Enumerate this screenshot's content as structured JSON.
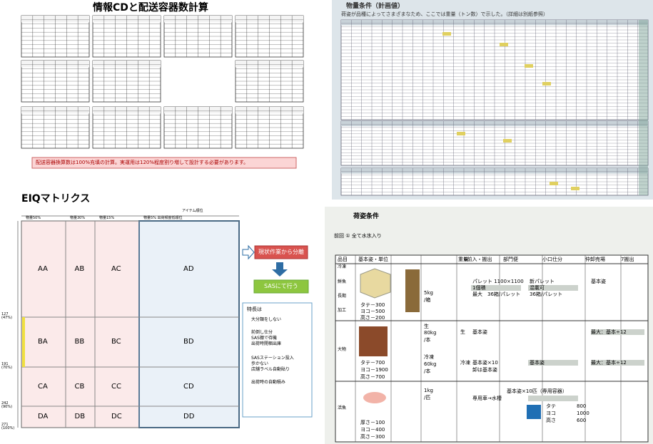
{
  "cd_panel": {
    "title": "情報CDと配送容器数計算",
    "note": "配送容器換算数は100%充填の計算。実運用は120%程度割り増して設計する必要があります。"
  },
  "eiq_panel": {
    "title": "EIQマトリクス",
    "top_labels": [
      "物量50%",
      "物量30%",
      "物量15%",
      "物量5% 出荷頻度低順位",
      "アイテム順位"
    ],
    "left_labels": [
      "127 (47%)",
      "191 (70%)",
      "242 (90%)",
      "271 (100%)"
    ],
    "cells": [
      [
        "AA",
        "AB",
        "AC",
        "AD"
      ],
      [
        "BA",
        "BB",
        "BC",
        "BD"
      ],
      [
        "CA",
        "CB",
        "CC",
        "CD"
      ],
      [
        "DA",
        "DB",
        "DC",
        "DD"
      ]
    ],
    "separate": "現状作業から分離",
    "sas": "SASにて行う",
    "features": {
      "heading": "特長は",
      "items": [
        "大分類をしない",
        "前倒し仕分",
        "SAS棚で待機",
        "出荷時開梱出庫",
        "SASステーション投入",
        "歩かない",
        "店舗ラベル自動貼り",
        "出荷時の自動積み"
      ]
    }
  },
  "volume_panel": {
    "title": "物量条件（計画値）",
    "subtitle": "荷姿が品種によってさまざまなため、ここでは重量（トン数）で示した。（詳細は別紙参照）"
  },
  "packing_panel": {
    "title": "荷姿条件",
    "premise": "前回 ① 全て水氷入り",
    "header": [
      "品目",
      "基本姿・単位",
      "重量",
      "6前入・搬出",
      "部門便",
      "小口仕分",
      "仲卸売場",
      "7搬出"
    ],
    "rows": [
      {
        "items": [
          "冷凍",
          "鮮魚",
          "長期",
          "加工"
        ],
        "size": [
          "タテ－300",
          "ヨコ－500",
          "高さ－200"
        ],
        "weight": [
          "5kg",
          "/箱"
        ],
        "cells": [
          "パレット 1100×1100",
          "1個積",
          "最大　36箱/パレット",
          "新パレット",
          "混載可",
          "36箱/パレット",
          "基本姿"
        ]
      },
      {
        "items": [
          "大物"
        ],
        "size": [
          "タテ－700",
          "ヨコ－1900",
          "高さ－700"
        ],
        "weight": [
          "生",
          "80kg",
          "/本",
          "冷凍",
          "60kg",
          "/本"
        ],
        "cells": [
          "生",
          "基本姿",
          "最大：基本÷12",
          "冷凍",
          "基本姿×10",
          "卸は基本姿",
          "基本姿",
          "最大：基本÷12"
        ]
      },
      {
        "items": [
          "活魚"
        ],
        "size": [
          "厚さ－100",
          "ヨコ－400",
          "高さ－300"
        ],
        "weight": [
          "1kg",
          "/匹"
        ],
        "cells": [
          "基本姿×10匹（専用容器）",
          "専用車→水槽",
          "タテ",
          "800",
          "ヨコ",
          "1000",
          "高さ",
          "600"
        ]
      }
    ]
  }
}
